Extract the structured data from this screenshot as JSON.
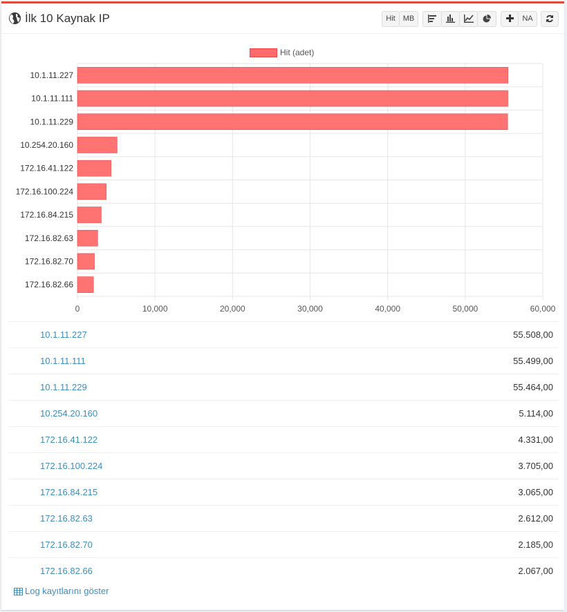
{
  "header": {
    "title": "İlk 10 Kaynak IP",
    "buttons": {
      "hit": "Hit",
      "mb": "MB",
      "na": "NA"
    }
  },
  "chart_data": {
    "type": "bar",
    "orientation": "horizontal",
    "legend": "Hit (adet)",
    "legend_position": "top",
    "categories": [
      "10.1.11.227",
      "10.1.11.111",
      "10.1.11.229",
      "10.254.20.160",
      "172.16.41.122",
      "172.16.100.224",
      "172.16.84.215",
      "172.16.82.63",
      "172.16.82.70",
      "172.16.82.66"
    ],
    "values": [
      55508,
      55499,
      55464,
      5114,
      4331,
      3705,
      3065,
      2612,
      2185,
      2067
    ],
    "xlim": [
      0,
      60000
    ],
    "ticks": [
      "0",
      "10,000",
      "20,000",
      "30,000",
      "40,000",
      "50,000",
      "60,000"
    ],
    "grid": true,
    "color": "#ff6b6b"
  },
  "table": {
    "rows": [
      {
        "ip": "10.1.11.227",
        "value": "55.508,00"
      },
      {
        "ip": "10.1.11.111",
        "value": "55.499,00"
      },
      {
        "ip": "10.1.11.229",
        "value": "55.464,00"
      },
      {
        "ip": "10.254.20.160",
        "value": "5.114,00"
      },
      {
        "ip": "172.16.41.122",
        "value": "4.331,00"
      },
      {
        "ip": "172.16.100.224",
        "value": "3.705,00"
      },
      {
        "ip": "172.16.84.215",
        "value": "3.065,00"
      },
      {
        "ip": "172.16.82.63",
        "value": "2.612,00"
      },
      {
        "ip": "172.16.82.70",
        "value": "2.185,00"
      },
      {
        "ip": "172.16.82.66",
        "value": "2.067,00"
      }
    ]
  },
  "footer": {
    "link": "Log kayıtlarını göster"
  }
}
